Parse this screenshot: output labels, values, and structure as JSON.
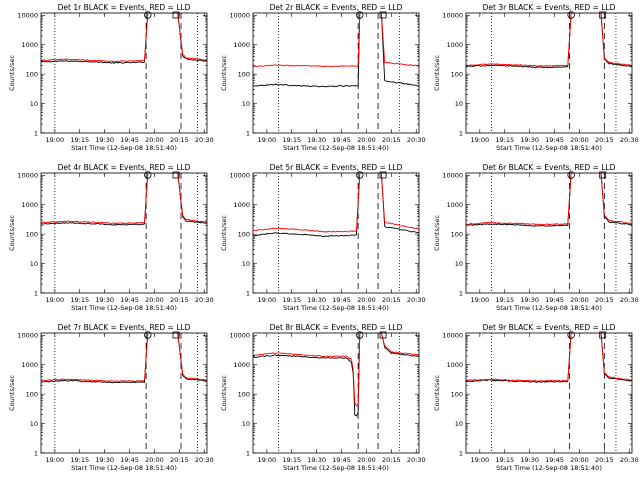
{
  "figure": {
    "background": "#ffffff",
    "colors": {
      "events": "#000000",
      "lld": "#ff0000"
    }
  },
  "chart_data": [
    {
      "type": "line",
      "title": "Det 1r BLACK = Events, RED = LLD",
      "xlabel": "Start Time (12-Sep-08 18:51:40)",
      "ylabel": "Counts/sec",
      "yscale": "log",
      "ylim": [
        1,
        12000
      ],
      "xlim": [
        "18:51:40",
        "20:31:40"
      ],
      "xtick_labels": [
        "19:00",
        "19:15",
        "19:30",
        "19:45",
        "20:00",
        "20:15",
        "20:30"
      ],
      "ytick_labels": [
        "1",
        "10",
        "100",
        "1000",
        "10000"
      ],
      "dotted_lines": [
        "19:00",
        "20:26"
      ],
      "dashed_lines": [
        "19:55",
        "20:16"
      ],
      "markers": [
        {
          "symbol": "circle",
          "x": "19:56"
        },
        {
          "symbol": "square",
          "x": "20:13"
        }
      ],
      "series": [
        {
          "color": "black",
          "x": [
            "18:51:40",
            "19:05",
            "19:20",
            "19:35",
            "19:50",
            "19:54",
            "19:56",
            "20:05",
            "20:14",
            "20:17",
            "20:19",
            "20:31:40"
          ],
          "values": [
            260,
            280,
            270,
            240,
            250,
            260,
            12000,
            12000,
            12000,
            420,
            330,
            280
          ]
        },
        {
          "color": "red",
          "x": [
            "18:51:40",
            "19:05",
            "19:20",
            "19:35",
            "19:50",
            "19:54",
            "19:56",
            "20:05",
            "20:14",
            "20:17",
            "20:19",
            "20:31:40"
          ],
          "values": [
            290,
            320,
            300,
            270,
            280,
            300,
            12000,
            12000,
            12000,
            480,
            360,
            300
          ]
        }
      ]
    },
    {
      "type": "line",
      "title": "Det 2r BLACK = Events, RED = LLD",
      "xlabel": "Start Time (12-Sep-08 18:51:40)",
      "ylabel": "Counts/sec",
      "yscale": "log",
      "ylim": [
        1,
        12000
      ],
      "xlim": [
        "18:51:40",
        "20:31:40"
      ],
      "xtick_labels": [
        "19:00",
        "19:15",
        "19:30",
        "19:45",
        "20:00",
        "20:15",
        "20:30"
      ],
      "ytick_labels": [
        "1",
        "10",
        "100",
        "1000",
        "10000"
      ],
      "dotted_lines": [
        "19:07",
        "20:20"
      ],
      "dashed_lines": [
        "19:55",
        "20:07"
      ],
      "markers": [
        {
          "symbol": "circle",
          "x": "19:56"
        },
        {
          "symbol": "square",
          "x": "20:10"
        }
      ],
      "series": [
        {
          "color": "black",
          "x": [
            "18:51:40",
            "19:05",
            "19:20",
            "19:35",
            "19:50",
            "19:55",
            "19:56",
            "20:05",
            "20:09",
            "20:11",
            "20:31:40"
          ],
          "values": [
            40,
            45,
            40,
            38,
            40,
            40,
            12000,
            12000,
            12000,
            60,
            40
          ]
        },
        {
          "color": "red",
          "x": [
            "18:51:40",
            "19:05",
            "19:20",
            "19:35",
            "19:50",
            "19:55",
            "19:56",
            "20:05",
            "20:09",
            "20:11",
            "20:31:40"
          ],
          "values": [
            180,
            200,
            195,
            185,
            190,
            190,
            12000,
            12000,
            12000,
            250,
            190
          ]
        }
      ]
    },
    {
      "type": "line",
      "title": "Det 3r BLACK = Events, RED = LLD",
      "xlabel": "Start Time (12-Sep-08 18:51:40)",
      "ylabel": "Counts/sec",
      "yscale": "log",
      "ylim": [
        1,
        12000
      ],
      "xlim": [
        "18:51:40",
        "20:31:40"
      ],
      "xtick_labels": [
        "19:00",
        "19:15",
        "19:30",
        "19:45",
        "20:00",
        "20:15",
        "20:30"
      ],
      "ytick_labels": [
        "1",
        "10",
        "100",
        "1000",
        "10000"
      ],
      "dotted_lines": [
        "19:07",
        "20:22"
      ],
      "dashed_lines": [
        "19:54",
        "20:15"
      ],
      "markers": [
        {
          "symbol": "circle",
          "x": "19:55"
        },
        {
          "symbol": "square",
          "x": "20:14"
        }
      ],
      "series": [
        {
          "color": "black",
          "x": [
            "18:51:40",
            "19:05",
            "19:20",
            "19:35",
            "19:50",
            "19:53",
            "19:55",
            "20:05",
            "20:13",
            "20:15",
            "20:18",
            "20:31:40"
          ],
          "values": [
            180,
            200,
            190,
            170,
            175,
            180,
            12000,
            12000,
            12000,
            320,
            230,
            180
          ]
        },
        {
          "color": "red",
          "x": [
            "18:51:40",
            "19:05",
            "19:20",
            "19:35",
            "19:50",
            "19:53",
            "19:55",
            "20:05",
            "20:13",
            "20:15",
            "20:18",
            "20:31:40"
          ],
          "values": [
            200,
            220,
            210,
            190,
            195,
            200,
            12000,
            12000,
            12000,
            350,
            250,
            200
          ]
        }
      ]
    },
    {
      "type": "line",
      "title": "Det 4r BLACK = Events, RED = LLD",
      "xlabel": "Start Time (12-Sep-08 18:51:40)",
      "ylabel": "Counts/sec",
      "yscale": "log",
      "ylim": [
        1,
        12000
      ],
      "xlim": [
        "18:51:40",
        "20:31:40"
      ],
      "xtick_labels": [
        "19:00",
        "19:15",
        "19:30",
        "19:45",
        "20:00",
        "20:15",
        "20:30"
      ],
      "ytick_labels": [
        "1",
        "10",
        "100",
        "1000",
        "10000"
      ],
      "dotted_lines": [
        "19:00",
        "20:26"
      ],
      "dashed_lines": [
        "19:55",
        "20:16"
      ],
      "markers": [
        {
          "symbol": "circle",
          "x": "19:56"
        },
        {
          "symbol": "square",
          "x": "20:13"
        }
      ],
      "series": [
        {
          "color": "black",
          "x": [
            "18:51:40",
            "19:05",
            "19:20",
            "19:35",
            "19:50",
            "19:54",
            "19:56",
            "20:05",
            "20:14",
            "20:17",
            "20:19",
            "20:31:40"
          ],
          "values": [
            220,
            240,
            230,
            210,
            215,
            220,
            12000,
            12000,
            12000,
            400,
            280,
            230
          ]
        },
        {
          "color": "red",
          "x": [
            "18:51:40",
            "19:05",
            "19:20",
            "19:35",
            "19:50",
            "19:54",
            "19:56",
            "20:05",
            "20:14",
            "20:17",
            "20:19",
            "20:31:40"
          ],
          "values": [
            250,
            270,
            260,
            235,
            240,
            250,
            12000,
            12000,
            12000,
            450,
            310,
            260
          ]
        }
      ]
    },
    {
      "type": "line",
      "title": "Det 5r BLACK = Events, RED = LLD",
      "xlabel": "Start Time (12-Sep-08 18:51:40)",
      "ylabel": "Counts/sec",
      "yscale": "log",
      "ylim": [
        1,
        12000
      ],
      "xlim": [
        "18:51:40",
        "20:31:40"
      ],
      "xtick_labels": [
        "19:00",
        "19:15",
        "19:30",
        "19:45",
        "20:00",
        "20:15",
        "20:30"
      ],
      "ytick_labels": [
        "1",
        "10",
        "100",
        "1000",
        "10000"
      ],
      "dotted_lines": [
        "19:07",
        "20:20"
      ],
      "dashed_lines": [
        "19:55",
        "20:07"
      ],
      "markers": [
        {
          "symbol": "circle",
          "x": "19:56"
        },
        {
          "symbol": "square",
          "x": "20:10"
        }
      ],
      "series": [
        {
          "color": "black",
          "x": [
            "18:51:40",
            "19:05",
            "19:20",
            "19:35",
            "19:50",
            "19:54",
            "19:56",
            "20:05",
            "20:09",
            "20:11",
            "20:31:40"
          ],
          "values": [
            90,
            110,
            100,
            85,
            90,
            95,
            12000,
            12000,
            12000,
            180,
            110
          ]
        },
        {
          "color": "red",
          "x": [
            "18:51:40",
            "19:05",
            "19:20",
            "19:35",
            "19:50",
            "19:54",
            "19:56",
            "20:05",
            "20:09",
            "20:11",
            "20:31:40"
          ],
          "values": [
            130,
            160,
            145,
            120,
            125,
            130,
            12000,
            12000,
            12000,
            250,
            150
          ]
        }
      ]
    },
    {
      "type": "line",
      "title": "Det 6r BLACK = Events, RED = LLD",
      "xlabel": "Start Time (12-Sep-08 18:51:40)",
      "ylabel": "Counts/sec",
      "yscale": "log",
      "ylim": [
        1,
        12000
      ],
      "xlim": [
        "18:51:40",
        "20:31:40"
      ],
      "xtick_labels": [
        "19:00",
        "19:15",
        "19:30",
        "19:45",
        "20:00",
        "20:15",
        "20:30"
      ],
      "ytick_labels": [
        "1",
        "10",
        "100",
        "1000",
        "10000"
      ],
      "dotted_lines": [
        "19:07",
        "20:22"
      ],
      "dashed_lines": [
        "19:54",
        "20:15"
      ],
      "markers": [
        {
          "symbol": "circle",
          "x": "19:55"
        },
        {
          "symbol": "square",
          "x": "20:14"
        }
      ],
      "series": [
        {
          "color": "black",
          "x": [
            "18:51:40",
            "19:05",
            "19:20",
            "19:35",
            "19:50",
            "19:53",
            "19:55",
            "20:05",
            "20:13",
            "20:15",
            "20:18",
            "20:31:40"
          ],
          "values": [
            200,
            220,
            210,
            190,
            195,
            200,
            12000,
            12000,
            12000,
            400,
            260,
            210
          ]
        },
        {
          "color": "red",
          "x": [
            "18:51:40",
            "19:05",
            "19:20",
            "19:35",
            "19:50",
            "19:53",
            "19:55",
            "20:05",
            "20:13",
            "20:15",
            "20:18",
            "20:31:40"
          ],
          "values": [
            220,
            245,
            235,
            215,
            220,
            225,
            12000,
            12000,
            12000,
            450,
            290,
            230
          ]
        }
      ]
    },
    {
      "type": "line",
      "title": "Det 7r BLACK = Events, RED = LLD",
      "xlabel": "Start Time (12-Sep-08 18:51:40)",
      "ylabel": "Counts/sec",
      "yscale": "log",
      "ylim": [
        1,
        12000
      ],
      "xlim": [
        "18:51:40",
        "20:31:40"
      ],
      "xtick_labels": [
        "19:00",
        "19:15",
        "19:30",
        "19:45",
        "20:00",
        "20:15",
        "20:30"
      ],
      "ytick_labels": [
        "1",
        "10",
        "100",
        "1000",
        "10000"
      ],
      "dotted_lines": [
        "19:00",
        "20:26"
      ],
      "dashed_lines": [
        "19:55",
        "20:16"
      ],
      "markers": [
        {
          "symbol": "circle",
          "x": "19:56"
        },
        {
          "symbol": "square",
          "x": "20:13"
        }
      ],
      "series": [
        {
          "color": "black",
          "x": [
            "18:51:40",
            "19:05",
            "19:20",
            "19:35",
            "19:50",
            "19:54",
            "19:56",
            "20:05",
            "20:14",
            "20:17",
            "20:19",
            "20:31:40"
          ],
          "values": [
            260,
            290,
            270,
            250,
            255,
            260,
            12000,
            12000,
            12000,
            450,
            330,
            280
          ]
        },
        {
          "color": "red",
          "x": [
            "18:51:40",
            "19:05",
            "19:20",
            "19:35",
            "19:50",
            "19:54",
            "19:56",
            "20:05",
            "20:14",
            "20:17",
            "20:19",
            "20:31:40"
          ],
          "values": [
            290,
            320,
            300,
            275,
            280,
            290,
            12000,
            12000,
            12000,
            500,
            360,
            300
          ]
        }
      ]
    },
    {
      "type": "line",
      "title": "Det 8r BLACK = Events, RED = LLD",
      "xlabel": "Start Time (12-Sep-08 18:51:40)",
      "ylabel": "Counts/sec",
      "yscale": "log",
      "ylim": [
        1,
        12000
      ],
      "xlim": [
        "18:51:40",
        "20:31:40"
      ],
      "xtick_labels": [
        "19:00",
        "19:15",
        "19:30",
        "19:45",
        "20:00",
        "20:15",
        "20:30"
      ],
      "ytick_labels": [
        "1",
        "10",
        "100",
        "1000",
        "10000"
      ],
      "dotted_lines": [
        "19:07",
        "20:20"
      ],
      "dashed_lines": [
        "19:55",
        "20:07"
      ],
      "markers": [
        {
          "symbol": "circle",
          "x": "19:56"
        },
        {
          "symbol": "square",
          "x": "20:10"
        }
      ],
      "series": [
        {
          "color": "black",
          "x": [
            "18:51:40",
            "19:05",
            "19:20",
            "19:35",
            "19:48",
            "19:51",
            "19:52",
            "19:53",
            "19:54",
            "19:55",
            "19:56",
            "20:05",
            "20:09",
            "20:11",
            "20:15",
            "20:31:40"
          ],
          "values": [
            1800,
            2100,
            1900,
            1700,
            1700,
            1200,
            500,
            20,
            18,
            25,
            12000,
            12000,
            12000,
            4000,
            2500,
            1900
          ]
        },
        {
          "color": "red",
          "x": [
            "18:51:40",
            "19:05",
            "19:20",
            "19:35",
            "19:48",
            "19:51",
            "19:52",
            "19:53",
            "19:54",
            "19:55",
            "19:56",
            "20:05",
            "20:09",
            "20:11",
            "20:15",
            "20:31:40"
          ],
          "values": [
            2100,
            2500,
            2200,
            1950,
            1950,
            1500,
            700,
            50,
            40,
            45,
            12000,
            12000,
            12000,
            4500,
            2800,
            2100
          ]
        }
      ]
    },
    {
      "type": "line",
      "title": "Det 9r BLACK = Events, RED = LLD",
      "xlabel": "Start Time (12-Sep-08 18:51:40)",
      "ylabel": "Counts/sec",
      "yscale": "log",
      "ylim": [
        1,
        12000
      ],
      "xlim": [
        "18:51:40",
        "20:31:40"
      ],
      "xtick_labels": [
        "19:00",
        "19:15",
        "19:30",
        "19:45",
        "20:00",
        "20:15",
        "20:30"
      ],
      "ytick_labels": [
        "1",
        "10",
        "100",
        "1000",
        "10000"
      ],
      "dotted_lines": [
        "19:07",
        "20:22"
      ],
      "dashed_lines": [
        "19:54",
        "20:15"
      ],
      "markers": [
        {
          "symbol": "circle",
          "x": "19:55"
        },
        {
          "symbol": "square",
          "x": "20:14"
        }
      ],
      "series": [
        {
          "color": "black",
          "x": [
            "18:51:40",
            "19:05",
            "19:20",
            "19:35",
            "19:50",
            "19:53",
            "19:55",
            "20:05",
            "20:13",
            "20:15",
            "20:18",
            "20:31:40"
          ],
          "values": [
            270,
            300,
            280,
            260,
            265,
            270,
            12000,
            12000,
            12000,
            500,
            350,
            280
          ]
        },
        {
          "color": "red",
          "x": [
            "18:51:40",
            "19:05",
            "19:20",
            "19:35",
            "19:50",
            "19:53",
            "19:55",
            "20:05",
            "20:13",
            "20:15",
            "20:18",
            "20:31:40"
          ],
          "values": [
            290,
            320,
            300,
            280,
            285,
            290,
            12000,
            12000,
            12000,
            540,
            380,
            300
          ]
        }
      ]
    }
  ]
}
